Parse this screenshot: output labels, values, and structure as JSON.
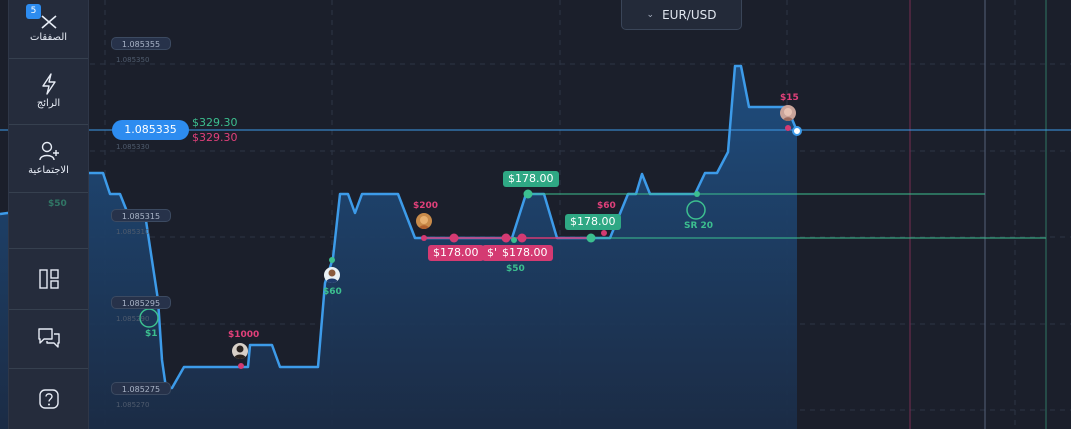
{
  "sidebar": {
    "items": [
      {
        "label": "الصفقات",
        "icon": "close-x-icon",
        "badge": "5"
      },
      {
        "label": "الرائج",
        "icon": "lightning-icon"
      },
      {
        "label": "الاجتماعية",
        "icon": "user-plus-icon"
      },
      {
        "label": "",
        "icon": "layout-icon"
      },
      {
        "label": "",
        "icon": "chat-icon"
      },
      {
        "label": "",
        "icon": "help-icon"
      }
    ]
  },
  "symbol": {
    "label": "EUR/USD"
  },
  "current_price": {
    "value": "1.085335",
    "profit": "$329.30",
    "loss": "$329.30"
  },
  "price_labels": [
    {
      "value": "1.085355",
      "sub": "1.085350"
    },
    {
      "value": "",
      "sub": "1.085330"
    },
    {
      "value": "1.085315",
      "sub": "1.085310"
    },
    {
      "value": "1.085295",
      "sub": "1.085290"
    },
    {
      "value": "1.085275",
      "sub": "1.085270"
    }
  ],
  "markers": [
    {
      "text": "$50",
      "color": "green"
    },
    {
      "text": "$1",
      "color": "green"
    },
    {
      "text": "$1000",
      "color": "red"
    },
    {
      "text": "$60",
      "color": "green"
    },
    {
      "text": "$200",
      "color": "red"
    },
    {
      "text": "$50",
      "color": "green"
    },
    {
      "text": "$60",
      "color": "red"
    },
    {
      "text": "SR 20",
      "color": "green"
    },
    {
      "text": "$15",
      "color": "red"
    }
  ],
  "trade_tags": [
    {
      "text": "$178.00",
      "color": "green"
    },
    {
      "text": "$178.00",
      "color": "green"
    },
    {
      "text": "$178.00",
      "color": "red"
    },
    {
      "text": "$'",
      "color": "red"
    },
    {
      "text": "$178.00",
      "color": "red"
    }
  ],
  "colors": {
    "background": "#1b1f2b",
    "line": "#3d9be9",
    "accent": "#2d8cf0",
    "green": "#3cbf8f",
    "red": "#e0407a"
  }
}
